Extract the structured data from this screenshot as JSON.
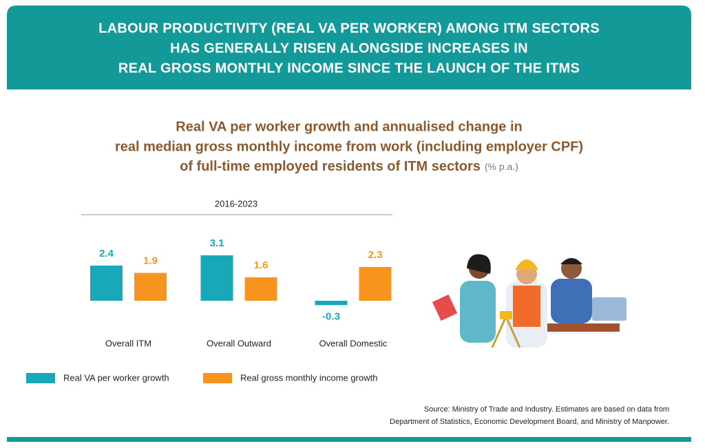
{
  "header": {
    "title_lines": [
      "LABOUR PRODUCTIVITY (REAL VA PER WORKER) AMONG ITM SECTORS",
      "HAS GENERALLY RISEN ALONGSIDE INCREASES IN",
      "REAL GROSS MONTHLY INCOME SINCE THE LAUNCH OF THE ITMS"
    ]
  },
  "chart_data": {
    "type": "bar",
    "title_lines": [
      "Real VA per worker growth and annualised change in",
      "real median gross monthly income from work (including employer CPF)",
      "of full-time employed residents of ITM sectors"
    ],
    "unit": "(% p.a.)",
    "period": "2016-2023",
    "categories": [
      "Overall ITM",
      "Overall Outward",
      "Overall Domestic"
    ],
    "series": [
      {
        "name": "Real VA per worker growth",
        "color": "#17a9b8",
        "values": [
          2.4,
          3.1,
          -0.3
        ]
      },
      {
        "name": "Real gross monthly income growth",
        "color": "#f7941d",
        "values": [
          1.9,
          1.6,
          2.3
        ]
      }
    ],
    "ylim": [
      -1,
      3.5
    ]
  },
  "source_lines": [
    "Source: Ministry of Trade and Industry. Estimates are based on data from",
    "Department of Statistics, Economic Development Board, and Ministry of Manpower."
  ]
}
